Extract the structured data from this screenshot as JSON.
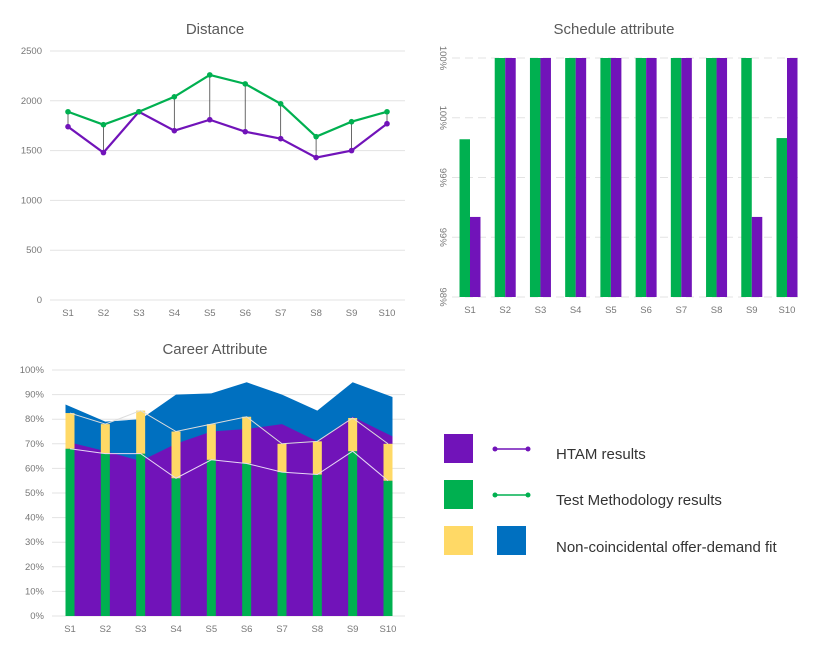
{
  "colors": {
    "htam": "#7113b9",
    "test": "#00b050",
    "yellow": "#ffd966",
    "blue": "#0070c0",
    "connector": "#444444"
  },
  "legend": {
    "items": [
      {
        "label": "HTAM results",
        "icons": [
          "purple-square",
          "purple-line-marker"
        ]
      },
      {
        "label": "Test Methodology results",
        "icons": [
          "green-square",
          "green-line-marker"
        ]
      },
      {
        "label": "Non-coincidental offer-demand fit",
        "icons": [
          "yellow-square",
          "blue-square"
        ]
      }
    ]
  },
  "chart_data": [
    {
      "type": "line",
      "title": "Distance",
      "categories": [
        "S1",
        "S2",
        "S3",
        "S4",
        "S5",
        "S6",
        "S7",
        "S8",
        "S9",
        "S10"
      ],
      "ylim": [
        0,
        2500
      ],
      "yticks": [
        "0",
        "500",
        "1000",
        "1500",
        "2000",
        "2500"
      ],
      "grid": true,
      "series": [
        {
          "name": "Test Methodology results",
          "color": "#00b050",
          "values": [
            1890,
            1760,
            1890,
            2040,
            2260,
            2170,
            1970,
            1640,
            1790,
            1890
          ]
        },
        {
          "name": "HTAM results",
          "color": "#7113b9",
          "values": [
            1740,
            1480,
            1890,
            1700,
            1810,
            1690,
            1620,
            1430,
            1500,
            1770
          ]
        }
      ]
    },
    {
      "type": "bar",
      "title": "Schedule attribute",
      "categories": [
        "S1",
        "S2",
        "S3",
        "S4",
        "S5",
        "S6",
        "S7",
        "S8",
        "S9",
        "S10"
      ],
      "ylim": [
        98,
        100
      ],
      "ytick_values": [
        98,
        98.5,
        99,
        99.5,
        100
      ],
      "yticks": [
        "98%",
        "99%",
        "99%",
        "100%",
        "100%"
      ],
      "grid": true,
      "series": [
        {
          "name": "Test Methodology results",
          "color": "#00b050",
          "values": [
            99.32,
            100,
            100,
            100,
            100,
            100,
            100,
            100,
            100,
            99.33
          ]
        },
        {
          "name": "HTAM results",
          "color": "#7113b9",
          "values": [
            98.67,
            100,
            100,
            100,
            100,
            100,
            100,
            100,
            98.67,
            100
          ]
        }
      ]
    },
    {
      "type": "area",
      "title": "Career Attribute",
      "categories": [
        "S1",
        "S2",
        "S3",
        "S4",
        "S5",
        "S6",
        "S7",
        "S8",
        "S9",
        "S10"
      ],
      "ylim": [
        0,
        100
      ],
      "yticks": [
        "0%",
        "10%",
        "20%",
        "30%",
        "40%",
        "50%",
        "60%",
        "70%",
        "80%",
        "90%",
        "100%"
      ],
      "grid": true,
      "series": [
        {
          "name": "Non-coincidental offer-demand fit (area)",
          "color": "#0070c0",
          "values": [
            86,
            79,
            80,
            90,
            90.5,
            95,
            90,
            83.5,
            95,
            89
          ]
        },
        {
          "name": "HTAM results",
          "color": "#7113b9",
          "values": [
            71,
            67,
            63,
            70,
            75,
            76,
            78,
            71,
            81,
            73
          ]
        },
        {
          "name": "Test Methodology results",
          "color": "#00b050",
          "values": [
            68,
            66,
            66,
            56,
            63.5,
            62,
            58.5,
            57.5,
            67,
            55
          ]
        },
        {
          "name": "Non-coincidental offer-demand fit (bar)",
          "color": "#ffd966",
          "values": [
            14.5,
            12,
            17.5,
            19,
            14.5,
            19,
            11.5,
            13.5,
            13.5,
            15
          ]
        }
      ]
    }
  ]
}
